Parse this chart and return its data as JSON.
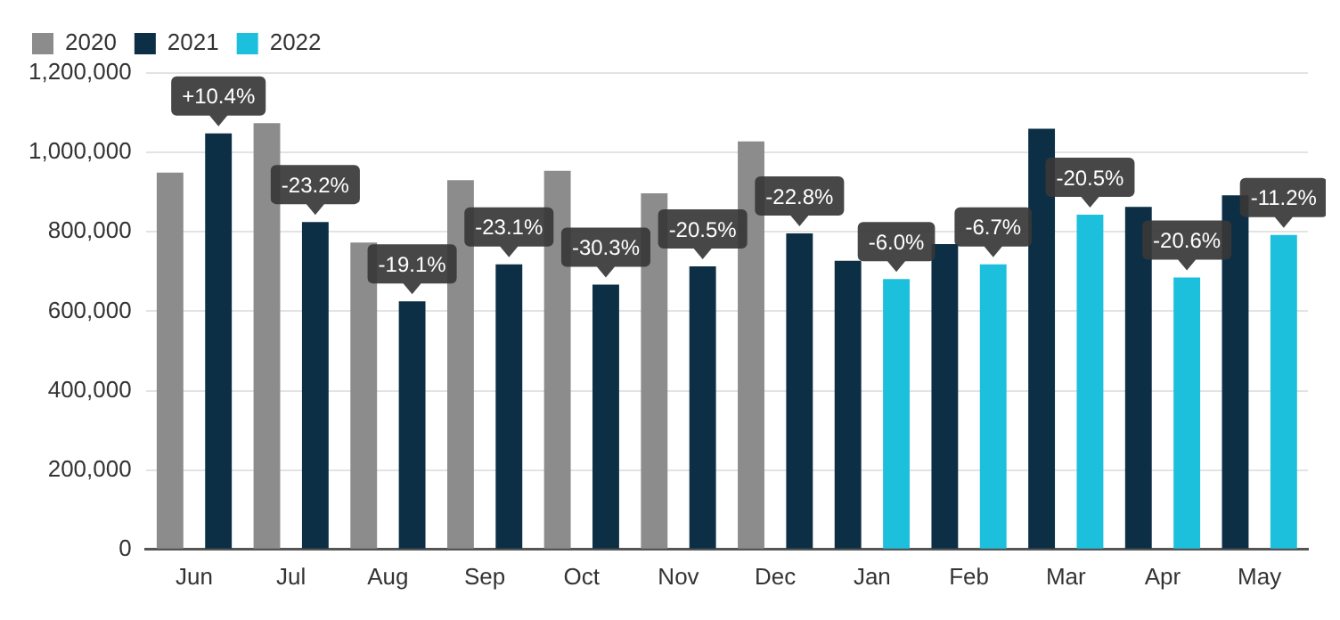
{
  "chart_data": {
    "type": "bar",
    "categories": [
      "Jun",
      "Jul",
      "Aug",
      "Sep",
      "Oct",
      "Nov",
      "Dec",
      "Jan",
      "Feb",
      "Mar",
      "Apr",
      "May"
    ],
    "series": [
      {
        "name": "2020",
        "color": "#8c8c8c",
        "values": [
          949000,
          1074000,
          773000,
          930000,
          954000,
          897000,
          1028000,
          null,
          null,
          null,
          null,
          null
        ]
      },
      {
        "name": "2021",
        "color": "#0d2f45",
        "values": [
          1048000,
          825000,
          625000,
          718000,
          667000,
          713000,
          796000,
          727000,
          769000,
          1060000,
          863000,
          892000
        ]
      },
      {
        "name": "2022",
        "color": "#1cc0dc",
        "values": [
          null,
          null,
          null,
          null,
          null,
          null,
          null,
          681000,
          718000,
          843000,
          685000,
          792000
        ]
      }
    ],
    "ylim": [
      0,
      1200000
    ],
    "yticks": [
      {
        "value": 0,
        "label": "0"
      },
      {
        "value": 200000,
        "label": "200,000"
      },
      {
        "value": 400000,
        "label": "400,000"
      },
      {
        "value": 600000,
        "label": "600,000"
      },
      {
        "value": 800000,
        "label": "800,000"
      },
      {
        "value": 1000000,
        "label": "1,000,000"
      },
      {
        "value": 1200000,
        "label": "1,200,000"
      }
    ],
    "grid": "y",
    "legend": "top left",
    "annotations": [
      "+10.4%",
      "-23.2%",
      "-19.1%",
      "-23.1%",
      "-30.3%",
      "-20.5%",
      "-22.8%",
      "-6.0%",
      "-6.7%",
      "-20.5%",
      "-20.6%",
      "-11.2%"
    ]
  }
}
